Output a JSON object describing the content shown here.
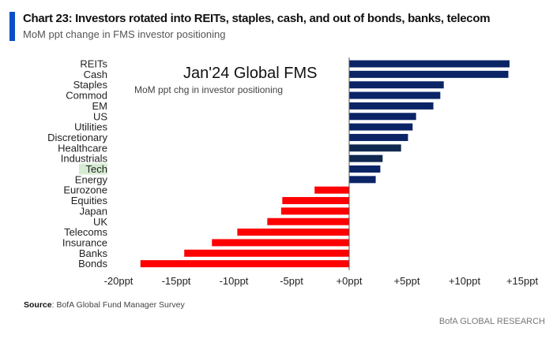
{
  "header": {
    "title": "Chart 23: Investors rotated into REITs, staples, cash, and out of bonds, banks, telecom",
    "subtitle": "MoM ppt change in FMS investor positioning"
  },
  "footer": {
    "source_label": "Source",
    "source_text": ": BofA Global Fund Manager Survey",
    "brand": "BofA GLOBAL RESEARCH"
  },
  "chart_data": {
    "type": "bar",
    "orientation": "horizontal",
    "title": "Jan'24 Global FMS",
    "subtitle": "MoM ppt chg in investor positioning",
    "categories": [
      "REITs",
      "Cash",
      "Staples",
      "Commod",
      "EM",
      "US",
      "Utilities",
      "Discretionary",
      "Healthcare",
      "Industrials",
      "Tech",
      "Energy",
      "Eurozone",
      "Equities",
      "Japan",
      "UK",
      "Telecoms",
      "Insurance",
      "Banks",
      "Bonds"
    ],
    "values": [
      13.9,
      13.8,
      8.2,
      7.9,
      7.3,
      5.8,
      5.5,
      5.1,
      4.5,
      2.9,
      2.7,
      2.3,
      -3.0,
      -5.8,
      -5.9,
      -7.1,
      -9.7,
      -11.9,
      -14.3,
      -18.1
    ],
    "highlighted_category": "Tech",
    "darker_bars": [
      "Healthcare",
      "Industrials"
    ],
    "xlim": [
      -20,
      15
    ],
    "xticks": [
      -20,
      -15,
      -10,
      -5,
      0,
      5,
      10,
      15
    ],
    "xtick_labels": [
      "-20ppt",
      "-15ppt",
      "-10ppt",
      "-5ppt",
      "+0ppt",
      "+5ppt",
      "+10ppt",
      "+15ppt"
    ],
    "grid": false,
    "colors": {
      "positive": "#0a2466",
      "positive_dark": "#10284f",
      "negative": "#ff0000",
      "highlight": "#d6ecd2"
    }
  }
}
